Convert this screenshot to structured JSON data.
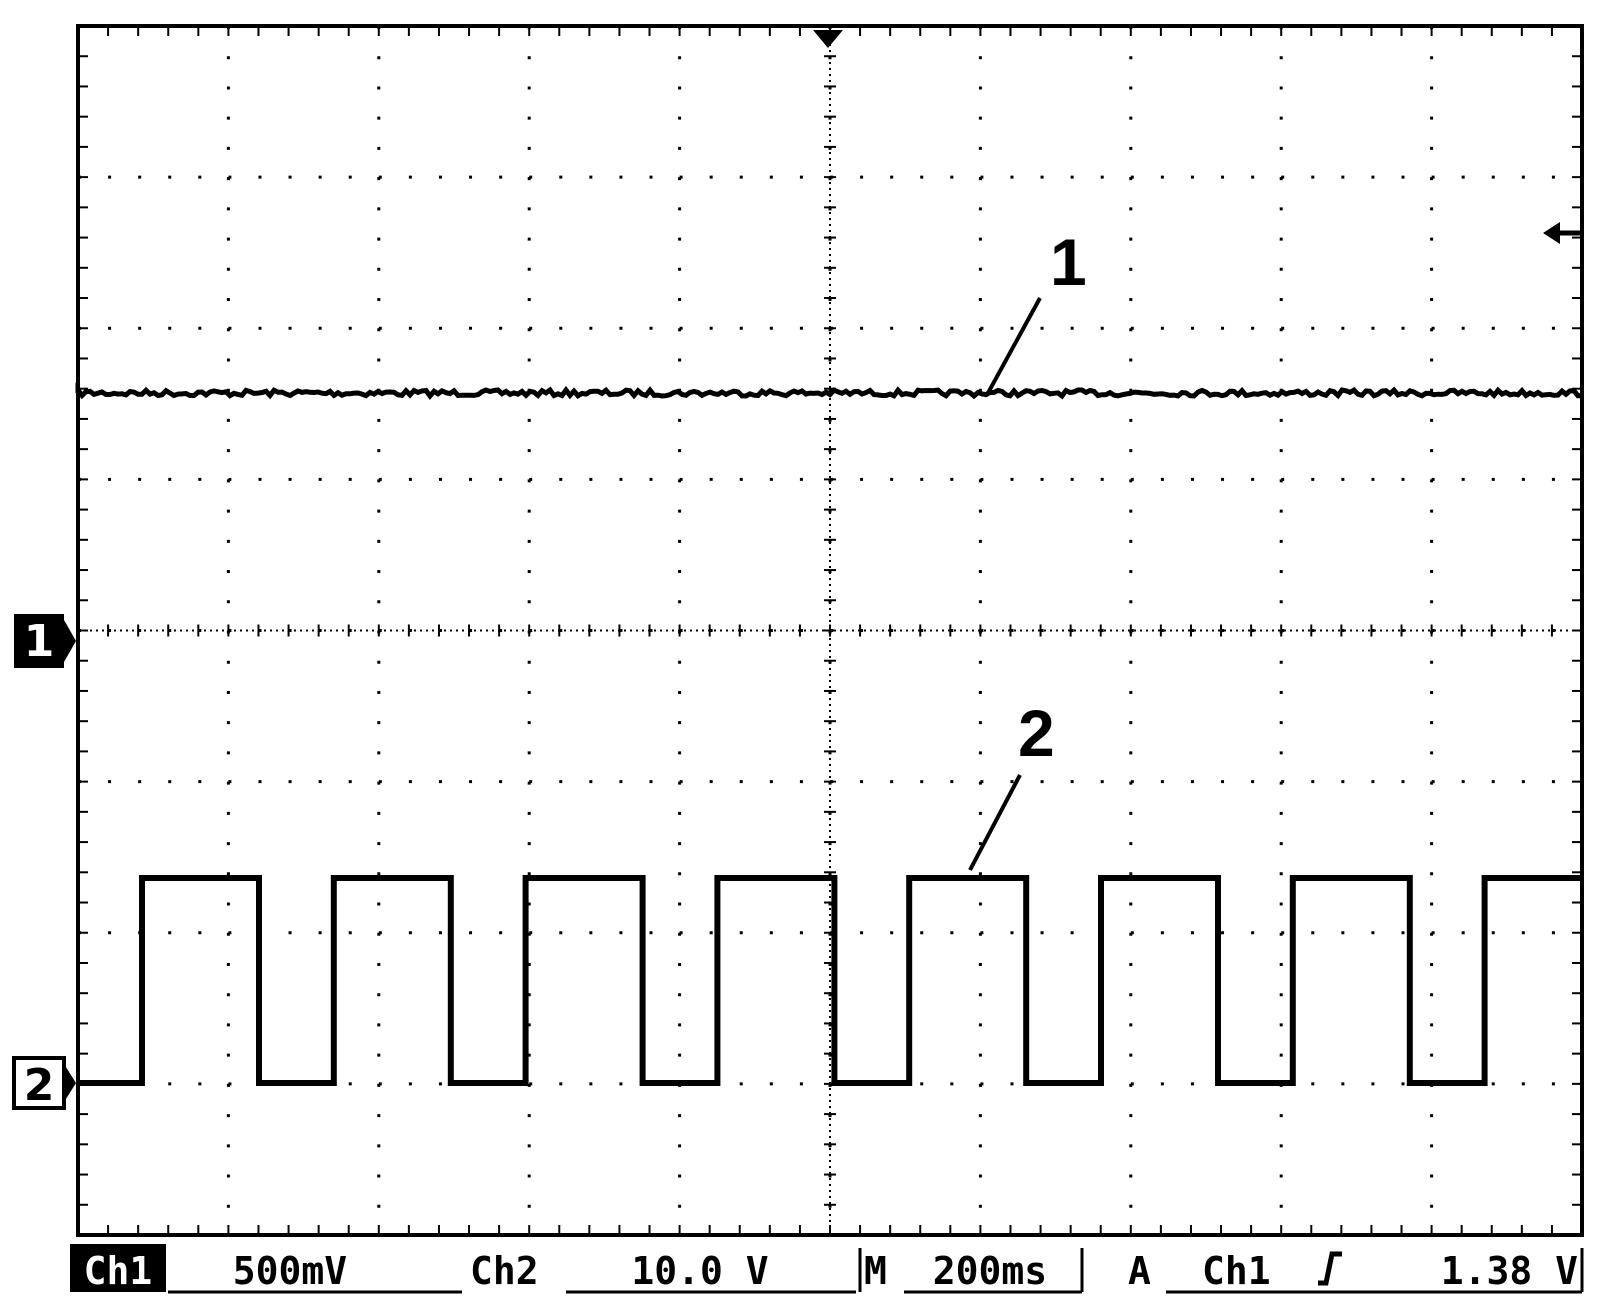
{
  "screen": {
    "trace_labels": [
      "1",
      "2"
    ],
    "channel_markers": [
      "1",
      "2"
    ],
    "status_bar": {
      "ch1_label": "Ch1",
      "ch1_scale": "500mV",
      "ch2_label": "Ch2",
      "ch2_scale": "10.0 V",
      "time_label": "M",
      "time_scale": "200ms",
      "trigger_mode": "A",
      "trigger_source": "Ch1",
      "trigger_level": "1.38 V"
    }
  }
}
